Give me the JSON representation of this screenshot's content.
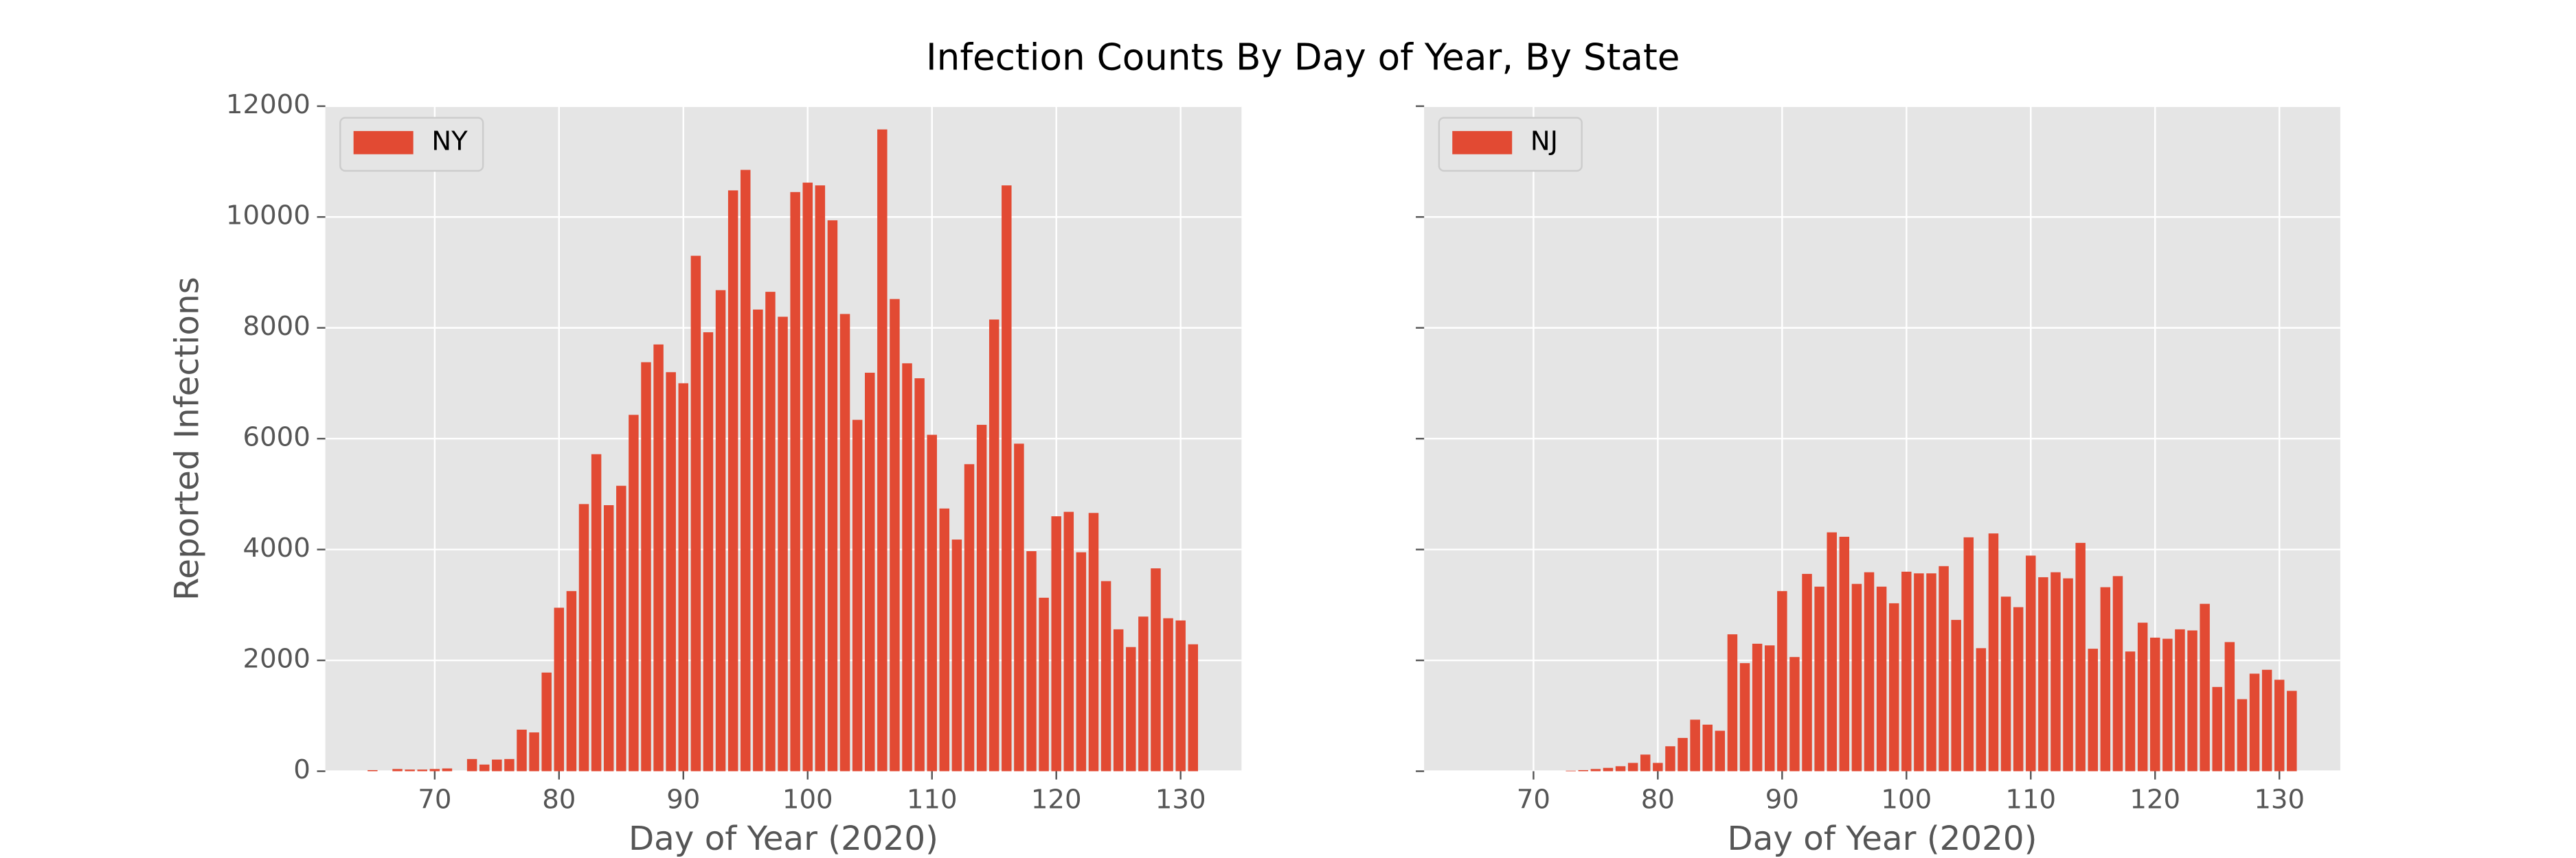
{
  "title": "Infection Counts By Day of Year, By State",
  "chart_data": [
    {
      "type": "bar",
      "xlabel": "Day of Year (2020)",
      "ylabel": "Reported Infections",
      "series": [
        {
          "name": "NY",
          "color": "#e24a33",
          "x": [
            65,
            66,
            67,
            68,
            69,
            70,
            71,
            72,
            73,
            74,
            75,
            76,
            77,
            78,
            79,
            80,
            81,
            82,
            83,
            84,
            85,
            86,
            87,
            88,
            89,
            90,
            91,
            92,
            93,
            94,
            95,
            96,
            97,
            98,
            99,
            100,
            101,
            102,
            103,
            104,
            105,
            106,
            107,
            108,
            109,
            110,
            111,
            112,
            113,
            114,
            115,
            116,
            117,
            118,
            119,
            120,
            121,
            122,
            123,
            124,
            125,
            126,
            127,
            128,
            129,
            130,
            131
          ],
          "values": [
            20,
            0,
            40,
            30,
            30,
            40,
            50,
            0,
            220,
            120,
            210,
            220,
            750,
            700,
            1780,
            2950,
            3250,
            4820,
            5720,
            4800,
            5150,
            6430,
            7380,
            7700,
            7200,
            7000,
            9300,
            7920,
            8680,
            10480,
            10850,
            8330,
            8650,
            8200,
            10450,
            10620,
            10570,
            9940,
            8250,
            6340,
            7190,
            11580,
            8520,
            7360,
            7090,
            6070,
            4740,
            4180,
            5540,
            6250,
            8150,
            10570,
            5910,
            3970,
            3130,
            4600,
            4680,
            3950,
            4660,
            3430,
            2560,
            2240,
            2790,
            3660,
            2760,
            2720,
            2290
          ]
        }
      ],
      "xlim": [
        61.2,
        134.9
      ],
      "xticks": [
        70,
        80,
        90,
        100,
        110,
        120,
        130
      ],
      "ylim": [
        0,
        12000
      ],
      "yticks": [
        0,
        2000,
        4000,
        6000,
        8000,
        10000,
        12000
      ],
      "grid": true,
      "legend": "upper left",
      "show_ytick_labels": true
    },
    {
      "type": "bar",
      "xlabel": "Day of Year (2020)",
      "series": [
        {
          "name": "NJ",
          "color": "#e24a33",
          "x": [
            73,
            74,
            75,
            76,
            77,
            78,
            79,
            80,
            81,
            82,
            83,
            84,
            85,
            86,
            87,
            88,
            89,
            90,
            91,
            92,
            93,
            94,
            95,
            96,
            97,
            98,
            99,
            100,
            101,
            102,
            103,
            104,
            105,
            106,
            107,
            108,
            109,
            110,
            111,
            112,
            113,
            114,
            115,
            116,
            117,
            118,
            119,
            120,
            121,
            122,
            123,
            124,
            125,
            126,
            127,
            128,
            129,
            130,
            131
          ],
          "values": [
            10,
            20,
            40,
            60,
            90,
            150,
            300,
            150,
            450,
            600,
            930,
            840,
            730,
            2470,
            1950,
            2300,
            2270,
            3250,
            2060,
            3560,
            3330,
            4310,
            4230,
            3380,
            3590,
            3330,
            3030,
            3600,
            3570,
            3570,
            3700,
            2730,
            4220,
            2220,
            4290,
            3150,
            2960,
            3890,
            3500,
            3590,
            3480,
            4120,
            2210,
            3320,
            3520,
            2160,
            2680,
            2410,
            2390,
            2560,
            2540,
            3020,
            1520,
            2330,
            1300,
            1760,
            1830,
            1650,
            1450
          ]
        }
      ],
      "xlim": [
        61.2,
        134.9
      ],
      "xticks": [
        70,
        80,
        90,
        100,
        110,
        120,
        130
      ],
      "ylim": [
        0,
        12000
      ],
      "yticks": [
        0,
        2000,
        4000,
        6000,
        8000,
        10000,
        12000
      ],
      "grid": true,
      "legend": "upper left",
      "show_ytick_labels": false
    }
  ]
}
